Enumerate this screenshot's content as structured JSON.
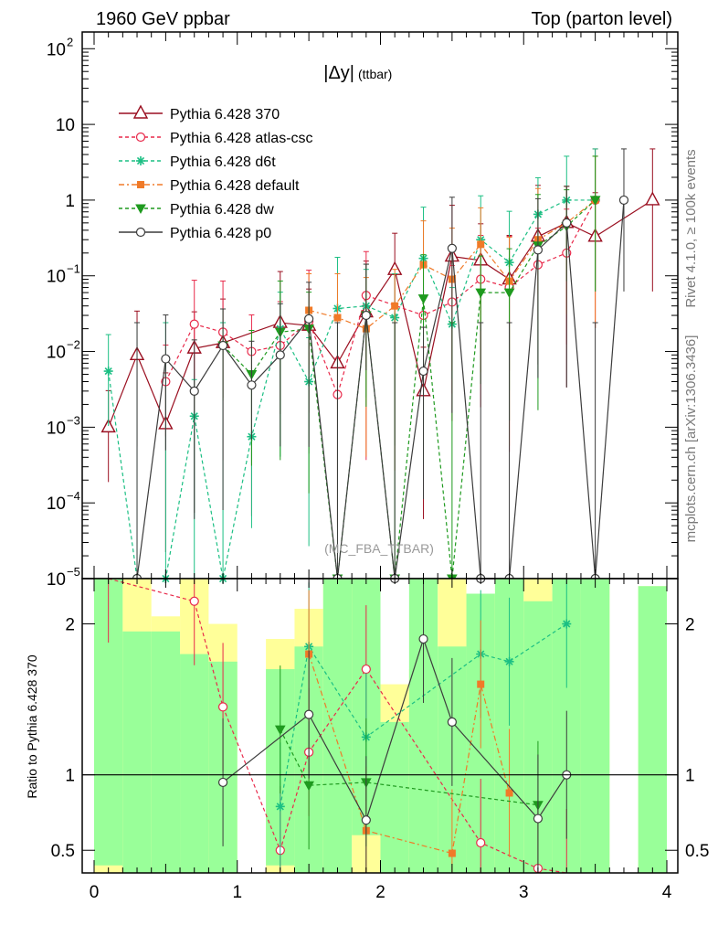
{
  "header": {
    "left": "1960 GeV ppbar",
    "right": "Top (parton level)",
    "side_top": "Rivet 4.1.0, ≥ 100k events",
    "side_bottom": "mcplots.cern.ch [arXiv:1306.3436]",
    "watermark": "(MC_FBA_TTBAR)"
  },
  "chart_data": [
    {
      "type": "line",
      "title": "|Δy|",
      "title_sub": "(ttbar)",
      "xlim": [
        0,
        4
      ],
      "ylim_log10": [
        -5,
        2.1
      ],
      "yscale": "log",
      "y_tick_labels": [
        {
          "exp": 2,
          "label": "10",
          "sup": "2"
        },
        {
          "exp": 1,
          "label": "10",
          "sup": ""
        },
        {
          "exp": 0,
          "label": "1",
          "sup": ""
        },
        {
          "exp": -1,
          "label": "10",
          "sup": "−1"
        },
        {
          "exp": -2,
          "label": "10",
          "sup": "−2"
        },
        {
          "exp": -3,
          "label": "10",
          "sup": "−3"
        },
        {
          "exp": -4,
          "label": "10",
          "sup": "−4"
        },
        {
          "exp": -5,
          "label": "10",
          "sup": "−5"
        }
      ],
      "series": [
        {
          "name": "Pythia 6.428 370",
          "color": "#9a0f20",
          "dash": "",
          "marker": "triangle",
          "x": [
            0.1,
            0.3,
            0.5,
            0.7,
            0.9,
            1.3,
            1.5,
            1.7,
            1.9,
            2.1,
            2.3,
            2.5,
            2.7,
            2.9,
            3.1,
            3.3,
            3.5,
            3.9
          ],
          "y": [
            0.001,
            0.009,
            0.0011,
            0.011,
            0.013,
            0.024,
            0.022,
            0.007,
            0.033,
            0.12,
            0.003,
            0.18,
            0.16,
            0.09,
            0.33,
            0.5,
            0.33,
            1.0
          ]
        },
        {
          "name": "Pythia 6.428 atlas-csc",
          "color": "#e8294a",
          "dash": "4,3",
          "marker": "circle-open",
          "x": [
            0.5,
            0.7,
            0.9,
            1.1,
            1.3,
            1.5,
            1.7,
            1.9,
            2.3,
            2.5,
            2.7,
            2.9,
            3.1,
            3.3,
            3.5
          ],
          "y": [
            0.004,
            0.023,
            0.018,
            0.01,
            0.012,
            0.025,
            0.0027,
            0.055,
            0.03,
            0.045,
            0.09,
            0.07,
            0.14,
            0.2,
            1.0
          ]
        },
        {
          "name": "Pythia 6.428 d6t",
          "color": "#1bbf83",
          "dash": "4,3",
          "marker": "star",
          "x": [
            0.1,
            0.3,
            0.5,
            0.7,
            0.9,
            1.1,
            1.3,
            1.5,
            1.7,
            1.9,
            2.1,
            2.3,
            2.5,
            2.7,
            2.9,
            3.1,
            3.3,
            3.5
          ],
          "y": [
            0.0055,
            1e-05,
            1e-05,
            0.0014,
            1e-05,
            0.00075,
            0.02,
            0.004,
            0.037,
            0.04,
            0.028,
            0.17,
            0.023,
            0.3,
            0.15,
            0.65,
            1.0,
            1.0
          ]
        },
        {
          "name": "Pythia 6.428 default",
          "color": "#f07a28",
          "dash": "6,3,2,3",
          "marker": "square",
          "x": [
            1.5,
            1.7,
            1.9,
            2.1,
            2.3,
            2.5,
            2.7,
            2.9,
            3.1,
            3.3,
            3.5
          ],
          "y": [
            0.035,
            0.028,
            0.02,
            0.04,
            0.14,
            0.09,
            0.26,
            0.085,
            0.3,
            0.5,
            1.0
          ]
        },
        {
          "name": "Pythia 6.428 dw",
          "color": "#1f9a1f",
          "dash": "4,3",
          "marker": "triangle-down",
          "x": [
            0.9,
            1.1,
            1.3,
            1.5,
            1.7,
            1.9,
            2.1,
            2.3,
            2.5,
            2.7,
            2.9,
            3.1,
            3.3,
            3.5
          ],
          "y": [
            0.012,
            0.005,
            0.018,
            0.02,
            1e-05,
            0.03,
            1e-05,
            0.05,
            1e-05,
            0.06,
            0.06,
            0.25,
            0.45,
            1.0
          ]
        },
        {
          "name": "Pythia 6.428 p0",
          "color": "#3c3c3c",
          "dash": "",
          "marker": "circle-open",
          "x": [
            0.3,
            0.5,
            0.7,
            0.9,
            1.1,
            1.3,
            1.5,
            1.7,
            1.9,
            2.1,
            2.3,
            2.5,
            2.7,
            2.9,
            3.1,
            3.3,
            3.5,
            3.7
          ],
          "y": [
            1e-05,
            0.008,
            0.003,
            0.012,
            0.0036,
            0.009,
            0.027,
            1e-05,
            0.03,
            1e-05,
            0.0055,
            0.23,
            1e-05,
            1e-05,
            0.22,
            0.5,
            1e-05,
            1.0
          ]
        }
      ]
    },
    {
      "type": "line",
      "title": "",
      "ylabel": "Ratio to Pythia 6.428 370",
      "xlim": [
        0,
        4
      ],
      "ylim": [
        0.35,
        2.3
      ],
      "x_ticks": [
        0,
        1,
        2,
        3,
        4
      ],
      "y_ticks": [
        0.5,
        1,
        2
      ],
      "reference_line": 1,
      "series": [
        {
          "name": "atlas-csc",
          "x": [
            0.1,
            0.7,
            0.9,
            1.3,
            1.5,
            1.9,
            2.7,
            3.1,
            3.3
          ],
          "y": [
            2.3,
            2.15,
            1.45,
            0.5,
            1.15,
            1.7,
            0.55,
            0.38,
            0.35
          ]
        },
        {
          "name": "d6t",
          "x": [
            1.3,
            1.5,
            1.9,
            2.7,
            2.9,
            3.3
          ],
          "y": [
            0.79,
            1.85,
            1.25,
            1.8,
            1.75,
            2.0
          ]
        },
        {
          "name": "default",
          "x": [
            1.5,
            1.9,
            2.5,
            2.7,
            2.9
          ],
          "y": [
            1.8,
            0.63,
            0.48,
            1.6,
            0.88
          ]
        },
        {
          "name": "dw",
          "x": [
            1.3,
            1.5,
            1.9,
            3.1
          ],
          "y": [
            1.3,
            0.93,
            0.95,
            0.8
          ]
        },
        {
          "name": "p0",
          "x": [
            0.9,
            1.5,
            1.9,
            2.3,
            2.5,
            3.1,
            3.3
          ],
          "y": [
            0.95,
            1.4,
            0.7,
            1.9,
            1.35,
            0.71,
            1.0
          ]
        }
      ]
    }
  ]
}
